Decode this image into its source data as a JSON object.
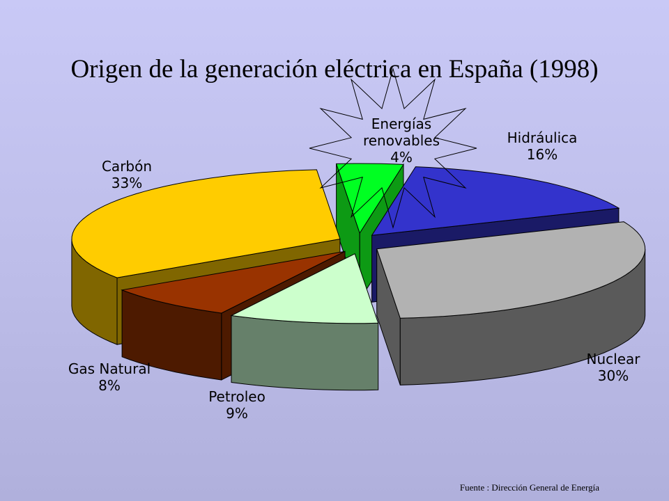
{
  "colors": {
    "background_top": "#c9c9f6",
    "background_bottom": "#b0b0dc"
  },
  "slide": {
    "title": "Origen de la generación eléctrica en España (1998)",
    "source": "Fuente : Dirección General de Energía"
  },
  "chart_data": {
    "type": "pie",
    "style": "3d-exploded",
    "title": "Origen de la generación eléctrica en España (1998)",
    "value_unit": "%",
    "slices": [
      {
        "label": "Energías renovables",
        "label_lines": [
          "Energías",
          "renovables"
        ],
        "display_value": "4%",
        "value": 4,
        "color": "#00ff22",
        "dark_color": "#0d9a14",
        "highlight": "starburst"
      },
      {
        "label": "Hidráulica",
        "label_lines": [
          "Hidráulica"
        ],
        "display_value": "16%",
        "value": 16,
        "color": "#3333cc",
        "dark_color": "#1a1a66"
      },
      {
        "label": "Nuclear",
        "label_lines": [
          "Nuclear"
        ],
        "display_value": "30%",
        "value": 30,
        "color": "#b2b2b2",
        "dark_color": "#5a5a5a"
      },
      {
        "label": "Petroleo",
        "label_lines": [
          "Petroleo"
        ],
        "display_value": "9%",
        "value": 9,
        "color": "#ccffcc",
        "dark_color": "#66806a"
      },
      {
        "label": "Gas Natural",
        "label_lines": [
          "Gas Natural"
        ],
        "display_value": "8%",
        "value": 8,
        "color": "#993300",
        "dark_color": "#4d1a00"
      },
      {
        "label": "Carbón",
        "label_lines": [
          "Carbón"
        ],
        "display_value": "33%",
        "value": 33,
        "color": "#ffcc00",
        "dark_color": "#806600"
      }
    ]
  }
}
